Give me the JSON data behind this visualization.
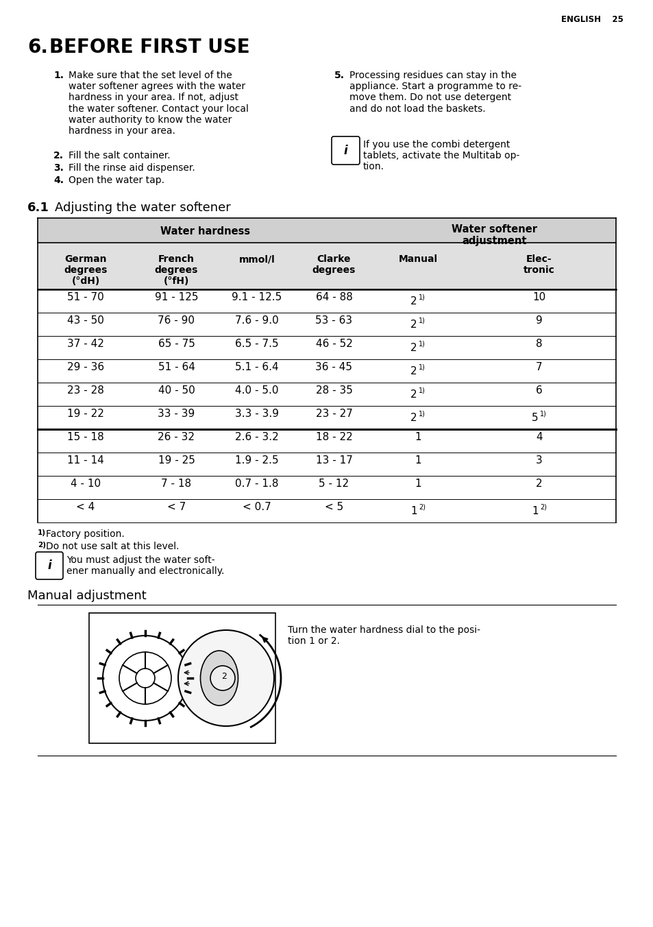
{
  "page_header": "ENGLISH    25",
  "section_title": "6. BEFORE FIRST USE",
  "col_headers": [
    "German\ndegrees\n(°dH)",
    "French\ndegrees\n(°fH)",
    "mmol/l",
    "Clarke\ndegrees",
    "Manual",
    "Elec-\ntronic"
  ],
  "table_rows": [
    [
      "51 - 70",
      "91 - 125",
      "9.1 - 12.5",
      "64 - 88",
      "2|1",
      "10"
    ],
    [
      "43 - 50",
      "76 - 90",
      "7.6 - 9.0",
      "53 - 63",
      "2|1",
      "9"
    ],
    [
      "37 - 42",
      "65 - 75",
      "6.5 - 7.5",
      "46 - 52",
      "2|1",
      "8"
    ],
    [
      "29 - 36",
      "51 - 64",
      "5.1 - 6.4",
      "36 - 45",
      "2|1",
      "7"
    ],
    [
      "23 - 28",
      "40 - 50",
      "4.0 - 5.0",
      "28 - 35",
      "2|1",
      "6"
    ],
    [
      "19 - 22",
      "33 - 39",
      "3.3 - 3.9",
      "23 - 27",
      "2|1",
      "5|1"
    ],
    [
      "15 - 18",
      "26 - 32",
      "2.6 - 3.2",
      "18 - 22",
      "1",
      "4"
    ],
    [
      "11 - 14",
      "19 - 25",
      "1.9 - 2.5",
      "13 - 17",
      "1",
      "3"
    ],
    [
      "4 - 10",
      "7 - 18",
      "0.7 - 1.8",
      "5 - 12",
      "1",
      "2"
    ],
    [
      "< 4",
      "< 7",
      "< 0.7",
      "< 5",
      "1|2",
      "1|2"
    ]
  ],
  "thick_line_after_row": 5,
  "bg_color": "#ffffff",
  "table_header_bg": "#d0d0d0",
  "table_col_header_bg": "#e0e0e0"
}
